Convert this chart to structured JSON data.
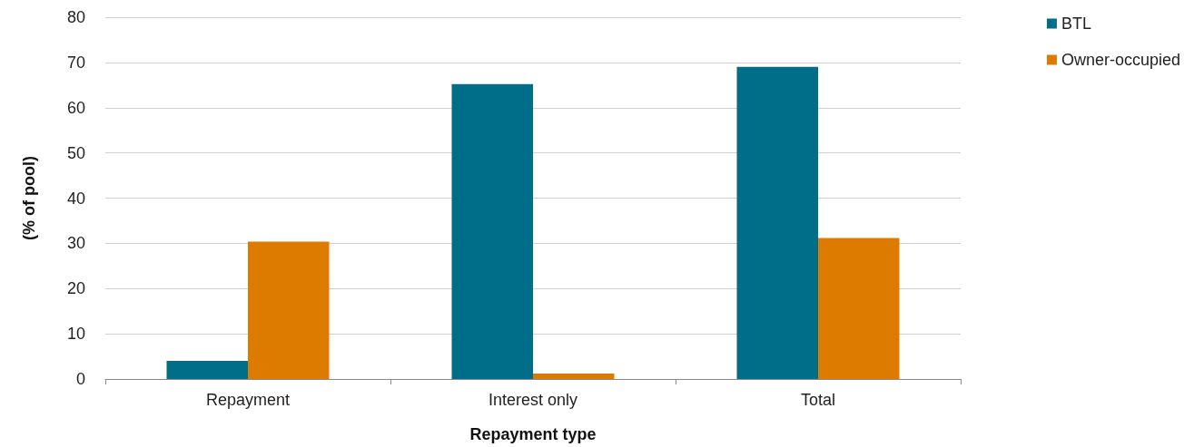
{
  "chart_data": {
    "type": "bar",
    "xlabel": "Repayment type",
    "ylabel": "(% of pool)",
    "categories": [
      "Repayment",
      "Interest only",
      "Total"
    ],
    "series": [
      {
        "name": "BTL",
        "color": "#006e89",
        "values": [
          4.0,
          65.2,
          69.0
        ]
      },
      {
        "name": "Owner-occupied",
        "color": "#dd7b00",
        "values": [
          30.4,
          1.2,
          31.2
        ]
      }
    ],
    "ylim": [
      0,
      80
    ],
    "yticks": [
      0,
      10,
      20,
      30,
      40,
      50,
      60,
      70,
      80
    ],
    "grid": "y",
    "legend": "top right"
  }
}
